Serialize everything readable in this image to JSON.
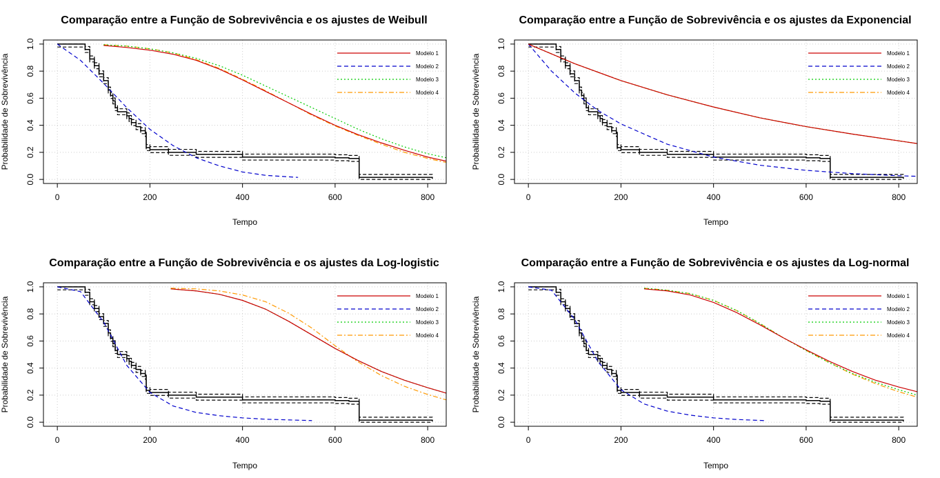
{
  "chart_data": [
    {
      "type": "line",
      "title": "Comparação entre a Função de Sobrevivência e os ajustes de Weibull",
      "xlabel": "Tempo",
      "ylabel": "Probabilidade de Sobrevivência",
      "xlim": [
        -30,
        840
      ],
      "ylim": [
        -0.03,
        1.03
      ],
      "xticks": [
        "0",
        "200",
        "400",
        "600",
        "800"
      ],
      "yticks": [
        "0.0",
        "0.2",
        "0.4",
        "0.6",
        "0.8",
        "1.0"
      ],
      "grid": true,
      "legend_position": "top-right",
      "series": [
        {
          "name": "Modelo 1",
          "color": "#cc0000",
          "dash": "solid",
          "x": [
            100,
            150,
            200,
            250,
            300,
            350,
            400,
            450,
            500,
            550,
            600,
            650,
            700,
            750,
            800,
            840
          ],
          "values": [
            0.99,
            0.975,
            0.955,
            0.925,
            0.88,
            0.815,
            0.735,
            0.65,
            0.565,
            0.48,
            0.4,
            0.33,
            0.27,
            0.215,
            0.165,
            0.135
          ]
        },
        {
          "name": "Modelo 2",
          "color": "#0000cc",
          "dash": "dashed",
          "x": [
            0,
            50,
            100,
            150,
            200,
            250,
            300,
            350,
            400,
            450,
            520
          ],
          "values": [
            1.0,
            0.88,
            0.71,
            0.53,
            0.37,
            0.25,
            0.16,
            0.1,
            0.055,
            0.03,
            0.015
          ]
        },
        {
          "name": "Modelo 3",
          "color": "#00cc00",
          "dash": "dotted",
          "x": [
            100,
            150,
            200,
            250,
            300,
            350,
            400,
            450,
            500,
            550,
            600,
            650,
            700,
            750,
            800,
            840
          ],
          "values": [
            0.995,
            0.985,
            0.965,
            0.935,
            0.895,
            0.84,
            0.77,
            0.69,
            0.61,
            0.53,
            0.45,
            0.37,
            0.3,
            0.24,
            0.19,
            0.16
          ]
        },
        {
          "name": "Modelo 4",
          "color": "#ff9900",
          "dash": "dashdot",
          "x": [
            100,
            150,
            200,
            250,
            300,
            350,
            400,
            450,
            500,
            550,
            600,
            650,
            700,
            750,
            800,
            840
          ],
          "values": [
            0.995,
            0.985,
            0.965,
            0.935,
            0.885,
            0.82,
            0.74,
            0.655,
            0.565,
            0.475,
            0.395,
            0.325,
            0.26,
            0.2,
            0.155,
            0.125
          ]
        }
      ]
    },
    {
      "type": "line",
      "title": "Comparação entre a Função de Sobrevivência e os ajustes da Exponencial",
      "xlabel": "Tempo",
      "ylabel": "Probabilidade de Sobrevivência",
      "xlim": [
        -30,
        840
      ],
      "ylim": [
        -0.03,
        1.03
      ],
      "xticks": [
        "0",
        "200",
        "400",
        "600",
        "800"
      ],
      "yticks": [
        "0.0",
        "0.2",
        "0.4",
        "0.6",
        "0.8",
        "1.0"
      ],
      "grid": true,
      "legend_position": "top-right",
      "series": [
        {
          "name": "Modelo 1",
          "color": "#cc0000",
          "dash": "solid",
          "x": [
            0,
            100,
            200,
            300,
            400,
            500,
            600,
            700,
            800,
            840
          ],
          "values": [
            1.0,
            0.855,
            0.73,
            0.625,
            0.535,
            0.455,
            0.39,
            0.335,
            0.285,
            0.265
          ]
        },
        {
          "name": "Modelo 2",
          "color": "#0000cc",
          "dash": "dashed",
          "x": [
            0,
            50,
            100,
            150,
            200,
            300,
            400,
            500,
            600,
            700,
            800,
            840
          ],
          "values": [
            1.0,
            0.8,
            0.64,
            0.51,
            0.41,
            0.26,
            0.165,
            0.105,
            0.067,
            0.043,
            0.027,
            0.023
          ]
        },
        {
          "name": "Modelo 3",
          "color": "#00cc00",
          "dash": "dotted",
          "x": [
            0,
            100,
            200,
            300,
            400,
            500,
            600,
            700,
            800,
            840
          ],
          "values": [
            1.0,
            0.855,
            0.73,
            0.625,
            0.535,
            0.455,
            0.39,
            0.335,
            0.285,
            0.265
          ]
        },
        {
          "name": "Modelo 4",
          "color": "#ff9900",
          "dash": "dashdot",
          "x": [
            0,
            100,
            200,
            300,
            400,
            500,
            600,
            700,
            800,
            840
          ],
          "values": [
            1.0,
            0.855,
            0.73,
            0.625,
            0.535,
            0.455,
            0.39,
            0.335,
            0.285,
            0.265
          ]
        }
      ]
    },
    {
      "type": "line",
      "title": "Comparação entre a Função de Sobrevivência e os ajustes da Log-logistic",
      "xlabel": "Tempo",
      "ylabel": "Probabilidade de Sobrevivência",
      "xlim": [
        -30,
        840
      ],
      "ylim": [
        -0.03,
        1.03
      ],
      "xticks": [
        "0",
        "200",
        "400",
        "600",
        "800"
      ],
      "yticks": [
        "0.0",
        "0.2",
        "0.4",
        "0.6",
        "0.8",
        "1.0"
      ],
      "grid": true,
      "legend_position": "top-right",
      "series": [
        {
          "name": "Modelo 1",
          "color": "#cc0000",
          "dash": "solid",
          "x": [
            245,
            300,
            350,
            400,
            450,
            500,
            550,
            600,
            650,
            700,
            750,
            800,
            840
          ],
          "values": [
            0.985,
            0.97,
            0.945,
            0.9,
            0.835,
            0.745,
            0.645,
            0.545,
            0.455,
            0.375,
            0.31,
            0.255,
            0.215
          ]
        },
        {
          "name": "Modelo 2",
          "color": "#0000cc",
          "dash": "dashed",
          "x": [
            0,
            50,
            100,
            150,
            200,
            250,
            300,
            350,
            400,
            450,
            550
          ],
          "values": [
            1.0,
            0.965,
            0.74,
            0.42,
            0.22,
            0.12,
            0.072,
            0.048,
            0.032,
            0.022,
            0.012
          ]
        },
        {
          "name": "Modelo 3",
          "color": "#00cc00",
          "dash": "dotted",
          "x": [
            245,
            300,
            350,
            400,
            450,
            500,
            550,
            600,
            650,
            700,
            750,
            800,
            840
          ],
          "values": [
            0.985,
            0.97,
            0.945,
            0.9,
            0.835,
            0.745,
            0.645,
            0.545,
            0.455,
            0.375,
            0.31,
            0.255,
            0.215
          ]
        },
        {
          "name": "Modelo 4",
          "color": "#ff9900",
          "dash": "dashdot",
          "x": [
            245,
            300,
            350,
            400,
            450,
            500,
            550,
            600,
            650,
            700,
            750,
            800,
            840
          ],
          "values": [
            0.99,
            0.985,
            0.97,
            0.94,
            0.89,
            0.805,
            0.695,
            0.565,
            0.445,
            0.345,
            0.265,
            0.205,
            0.165
          ]
        }
      ]
    },
    {
      "type": "line",
      "title": "Comparação entre a Função de Sobrevivência e os ajustes da Log-normal",
      "xlabel": "Tempo",
      "ylabel": "Probabilidade de Sobrevivência",
      "xlim": [
        -30,
        840
      ],
      "ylim": [
        -0.03,
        1.03
      ],
      "xticks": [
        "0",
        "200",
        "400",
        "600",
        "800"
      ],
      "yticks": [
        "0.0",
        "0.2",
        "0.4",
        "0.6",
        "0.8",
        "1.0"
      ],
      "grid": true,
      "legend_position": "top-right",
      "series": [
        {
          "name": "Modelo 1",
          "color": "#cc0000",
          "dash": "solid",
          "x": [
            250,
            300,
            350,
            400,
            450,
            500,
            550,
            600,
            650,
            700,
            750,
            800,
            840
          ],
          "values": [
            0.985,
            0.97,
            0.94,
            0.885,
            0.81,
            0.72,
            0.625,
            0.535,
            0.45,
            0.375,
            0.31,
            0.26,
            0.225
          ]
        },
        {
          "name": "Modelo 2",
          "color": "#0000cc",
          "dash": "dashed",
          "x": [
            0,
            50,
            100,
            150,
            200,
            250,
            300,
            350,
            400,
            450,
            510
          ],
          "values": [
            1.0,
            0.975,
            0.76,
            0.45,
            0.24,
            0.135,
            0.082,
            0.052,
            0.032,
            0.02,
            0.012
          ]
        },
        {
          "name": "Modelo 3",
          "color": "#00cc00",
          "dash": "dotted",
          "x": [
            250,
            300,
            350,
            400,
            450,
            500,
            550,
            600,
            650,
            700,
            750,
            800,
            840
          ],
          "values": [
            0.99,
            0.975,
            0.95,
            0.9,
            0.825,
            0.73,
            0.625,
            0.53,
            0.44,
            0.36,
            0.295,
            0.24,
            0.2
          ]
        },
        {
          "name": "Modelo 4",
          "color": "#ff9900",
          "dash": "dashdot",
          "x": [
            250,
            300,
            350,
            400,
            450,
            500,
            550,
            600,
            650,
            700,
            750,
            800,
            840
          ],
          "values": [
            0.99,
            0.975,
            0.95,
            0.9,
            0.825,
            0.73,
            0.625,
            0.53,
            0.44,
            0.355,
            0.285,
            0.225,
            0.185
          ]
        }
      ]
    }
  ],
  "km_step": {
    "color": "#000000",
    "x": [
      0,
      55,
      60,
      70,
      80,
      90,
      100,
      110,
      115,
      120,
      125,
      130,
      150,
      155,
      160,
      170,
      180,
      190,
      192,
      200,
      240,
      300,
      400,
      600,
      630,
      652,
      700,
      800,
      810
    ],
    "values": [
      1.0,
      1.0,
      0.96,
      0.89,
      0.84,
      0.78,
      0.73,
      0.66,
      0.62,
      0.58,
      0.53,
      0.5,
      0.47,
      0.45,
      0.42,
      0.39,
      0.36,
      0.34,
      0.235,
      0.22,
      0.2,
      0.185,
      0.165,
      0.16,
      0.155,
      0.015,
      0.015,
      0.015,
      0.005
    ],
    "band_offset": 0.022
  }
}
